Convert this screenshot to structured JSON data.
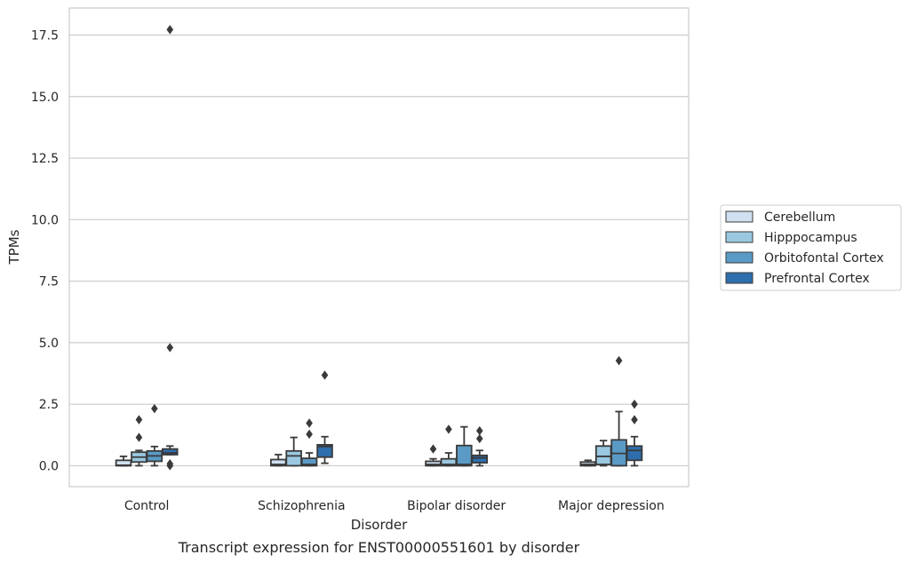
{
  "chart_data": {
    "type": "box",
    "caption": "Transcript expression for ENST00000551601 by disorder",
    "xlabel": "Disorder",
    "ylabel": "TPMs",
    "ylim": [
      -0.85,
      18.6
    ],
    "yticks": [
      0.0,
      2.5,
      5.0,
      7.5,
      10.0,
      12.5,
      15.0,
      17.5
    ],
    "ytick_labels": [
      "0.0",
      "2.5",
      "5.0",
      "7.5",
      "10.0",
      "12.5",
      "15.0",
      "17.5"
    ],
    "grid": "horizontal",
    "legend_position": "right",
    "categories": [
      "Control",
      "Schizophrenia",
      "Bipolar disorder",
      "Major depression"
    ],
    "series": [
      {
        "name": "Cerebellum",
        "color": "#d0e0f1",
        "boxes": [
          {
            "whisker_low": 0.0,
            "q1": 0.0,
            "median": 0.02,
            "q3": 0.22,
            "whisker_high": 0.38,
            "outliers": []
          },
          {
            "whisker_low": 0.0,
            "q1": 0.0,
            "median": 0.05,
            "q3": 0.25,
            "whisker_high": 0.45,
            "outliers": []
          },
          {
            "whisker_low": 0.0,
            "q1": 0.0,
            "median": 0.05,
            "q3": 0.18,
            "whisker_high": 0.28,
            "outliers": [
              0.68
            ]
          },
          {
            "whisker_low": 0.0,
            "q1": 0.0,
            "median": 0.05,
            "q3": 0.15,
            "whisker_high": 0.22,
            "outliers": []
          }
        ]
      },
      {
        "name": "Hipppocampus",
        "color": "#9ac8e0",
        "boxes": [
          {
            "whisker_low": 0.0,
            "q1": 0.15,
            "median": 0.35,
            "q3": 0.55,
            "whisker_high": 0.62,
            "outliers": [
              1.15,
              1.87
            ]
          },
          {
            "whisker_low": 0.0,
            "q1": 0.0,
            "median": 0.4,
            "q3": 0.6,
            "whisker_high": 1.15,
            "outliers": []
          },
          {
            "whisker_low": 0.0,
            "q1": 0.0,
            "median": 0.05,
            "q3": 0.28,
            "whisker_high": 0.52,
            "outliers": [
              1.48
            ]
          },
          {
            "whisker_low": 0.0,
            "q1": 0.05,
            "median": 0.38,
            "q3": 0.8,
            "whisker_high": 1.02,
            "outliers": []
          }
        ]
      },
      {
        "name": "Orbitofontal Cortex",
        "color": "#5a9bc6",
        "boxes": [
          {
            "whisker_low": 0.0,
            "q1": 0.18,
            "median": 0.4,
            "q3": 0.6,
            "whisker_high": 0.78,
            "outliers": [
              2.32
            ]
          },
          {
            "whisker_low": 0.0,
            "q1": 0.0,
            "median": 0.05,
            "q3": 0.3,
            "whisker_high": 0.52,
            "outliers": [
              1.28,
              1.73
            ]
          },
          {
            "whisker_low": 0.0,
            "q1": 0.0,
            "median": 0.05,
            "q3": 0.82,
            "whisker_high": 1.58,
            "outliers": []
          },
          {
            "whisker_low": 0.0,
            "q1": 0.0,
            "median": 0.5,
            "q3": 1.05,
            "whisker_high": 2.2,
            "outliers": [
              4.27
            ]
          }
        ]
      },
      {
        "name": "Prefrontal Cortex",
        "color": "#2e6eac",
        "boxes": [
          {
            "whisker_low": 0.45,
            "q1": 0.45,
            "median": 0.52,
            "q3": 0.68,
            "whisker_high": 0.8,
            "outliers": [
              4.8,
              17.72,
              0.08,
              0.0
            ]
          },
          {
            "whisker_low": 0.1,
            "q1": 0.35,
            "median": 0.78,
            "q3": 0.85,
            "whisker_high": 1.18,
            "outliers": [
              3.68
            ]
          },
          {
            "whisker_low": 0.0,
            "q1": 0.12,
            "median": 0.32,
            "q3": 0.42,
            "whisker_high": 0.62,
            "outliers": [
              1.1,
              1.42
            ]
          },
          {
            "whisker_low": 0.0,
            "q1": 0.22,
            "median": 0.62,
            "q3": 0.8,
            "whisker_high": 1.18,
            "outliers": [
              1.87,
              2.5
            ]
          }
        ]
      }
    ]
  }
}
